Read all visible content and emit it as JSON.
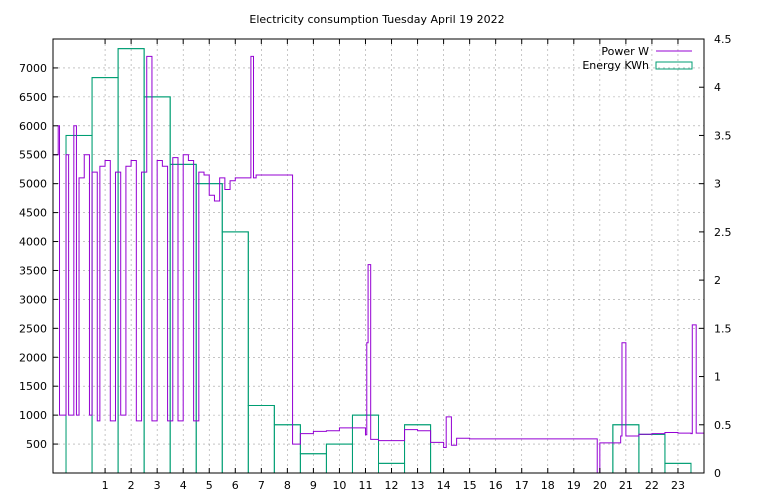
{
  "chart_data": {
    "type": "line",
    "title": "Electricity consumption Tuesday April 19 2022",
    "xlabel": "",
    "ylabel": "",
    "y2label": "",
    "xlim": [
      -1,
      24
    ],
    "ylim": [
      0,
      7500
    ],
    "y2lim": [
      0,
      4.5
    ],
    "x_ticks": [
      1,
      2,
      3,
      4,
      5,
      6,
      7,
      8,
      9,
      10,
      11,
      12,
      13,
      14,
      15,
      16,
      17,
      18,
      19,
      20,
      21,
      22,
      23
    ],
    "y_ticks": [
      500,
      1000,
      1500,
      2000,
      2500,
      3000,
      3500,
      4000,
      4500,
      5000,
      5500,
      6000,
      6500,
      7000
    ],
    "y2_ticks": [
      0,
      0.5,
      1,
      1.5,
      2,
      2.5,
      3,
      3.5,
      4,
      4.5
    ],
    "y2_tick_labels": [
      "0",
      "0.5",
      "1",
      "1.5",
      "2",
      "2.5",
      "3",
      "3.5",
      "4",
      "4.5"
    ],
    "grid": true,
    "legend_position": "top-right",
    "colors": {
      "power": "#9400d3",
      "energy": "#009e73"
    },
    "series": [
      {
        "name": "Power W",
        "axis": "y1",
        "style": "steps",
        "x": [
          -1.0,
          -0.8,
          -0.75,
          -0.5,
          -0.4,
          -0.2,
          -0.1,
          0.0,
          0.2,
          0.4,
          0.5,
          0.7,
          0.8,
          1.0,
          1.2,
          1.4,
          1.6,
          1.8,
          2.0,
          2.2,
          2.4,
          2.6,
          2.8,
          3.0,
          3.2,
          3.4,
          3.6,
          3.8,
          4.0,
          4.2,
          4.4,
          4.6,
          4.8,
          5.0,
          5.2,
          5.4,
          5.6,
          5.8,
          6.0,
          6.2,
          6.4,
          6.6,
          6.7,
          6.8,
          7.0,
          7.2,
          7.4,
          7.6,
          7.8,
          8.0,
          8.2,
          8.5,
          9.0,
          9.5,
          10.0,
          10.5,
          11.0,
          11.05,
          11.1,
          11.2,
          11.5,
          12.0,
          12.5,
          13.0,
          13.5,
          13.9,
          14.0,
          14.1,
          14.3,
          14.5,
          15.0,
          16.0,
          17.0,
          18.0,
          19.0,
          19.85,
          19.9,
          20.0,
          20.5,
          20.8,
          20.85,
          21.0,
          21.5,
          22.0,
          22.5,
          23.0,
          23.5,
          23.55,
          23.7,
          24.0
        ],
        "y": [
          5500,
          6000,
          1000,
          5500,
          1000,
          6000,
          1000,
          5100,
          5500,
          1000,
          5200,
          900,
          5300,
          5400,
          900,
          5200,
          1000,
          5300,
          5400,
          900,
          5200,
          7200,
          900,
          5400,
          5300,
          900,
          5450,
          900,
          5500,
          5400,
          900,
          5200,
          5150,
          4800,
          4700,
          5100,
          4900,
          5050,
          5100,
          5100,
          5100,
          7200,
          5100,
          5150,
          5150,
          5150,
          5150,
          5150,
          5150,
          5150,
          500,
          680,
          720,
          730,
          780,
          780,
          660,
          2250,
          3600,
          580,
          560,
          560,
          750,
          730,
          530,
          530,
          440,
          970,
          480,
          600,
          590,
          590,
          590,
          590,
          590,
          590,
          0,
          520,
          520,
          640,
          2250,
          640,
          670,
          680,
          700,
          690,
          680,
          2560,
          690,
          680
        ]
      },
      {
        "name": "Energy KWh",
        "axis": "y2",
        "style": "histeps",
        "x": [
          0,
          1,
          2,
          3,
          4,
          5,
          6,
          7,
          8,
          9,
          10,
          11,
          12,
          13,
          14,
          15,
          16,
          17,
          18,
          19,
          20,
          21,
          22,
          23
        ],
        "y": [
          3.5,
          4.1,
          4.4,
          3.9,
          3.2,
          3.0,
          2.5,
          0.7,
          0.5,
          0.2,
          0.3,
          0.6,
          0.1,
          0.5,
          0.0,
          0.0,
          0.0,
          0.0,
          0.0,
          0.0,
          0.0,
          0.5,
          0.4,
          0.1
        ]
      }
    ]
  }
}
